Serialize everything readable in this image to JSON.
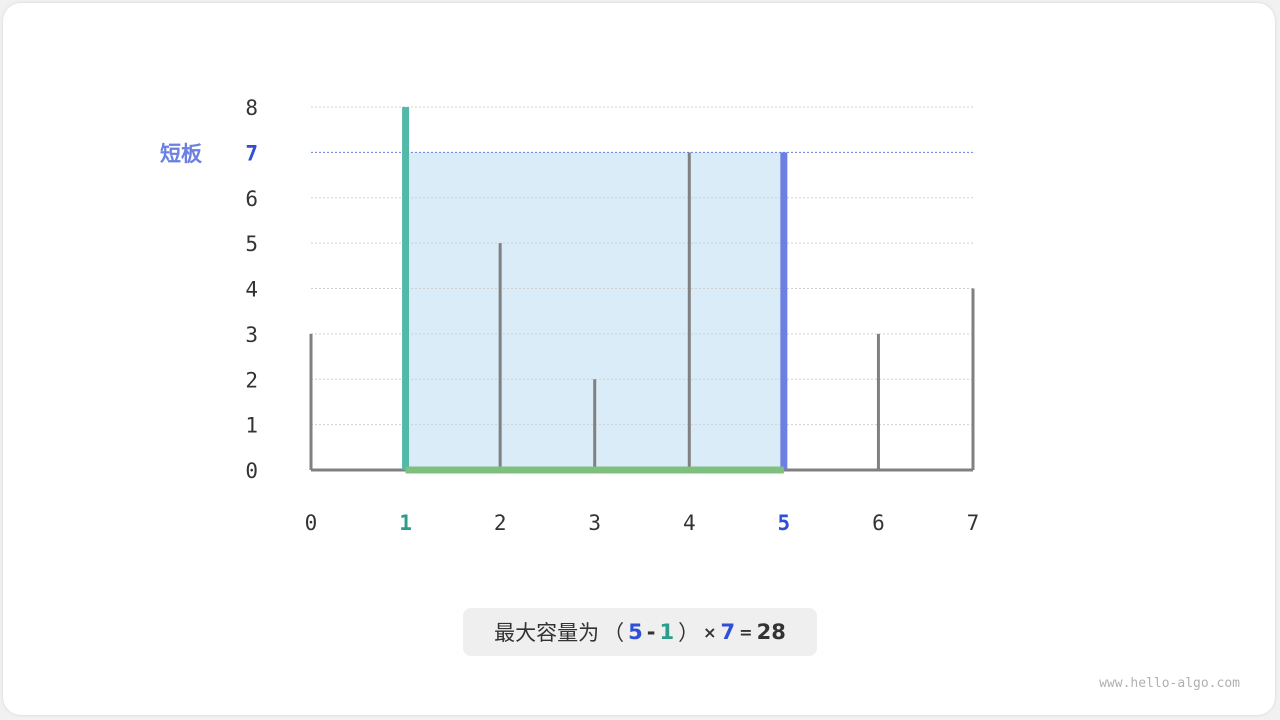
{
  "chart_data": {
    "type": "bar",
    "categories": [
      "0",
      "1",
      "2",
      "3",
      "4",
      "5",
      "6",
      "7"
    ],
    "values": [
      3,
      8,
      5,
      2,
      7,
      7,
      3,
      4
    ],
    "ylim": [
      0,
      8
    ],
    "yticks": [
      "0",
      "1",
      "2",
      "3",
      "4",
      "5",
      "6",
      "7",
      "8"
    ],
    "grid": true,
    "left_index": 1,
    "right_index": 5,
    "water_level": 7,
    "short_board_label": "短板",
    "colors": {
      "bar": "#808080",
      "left": "#52b8a8",
      "right": "#6b80e0",
      "base": "#7fbf7f",
      "fill": "#dbecf9",
      "highlight_text": "#2f4fd6",
      "left_text": "#2e9c8a",
      "short_label": "#6b80e0"
    }
  },
  "result": {
    "prefix": "最大容量为",
    "open": "（",
    "right": "5",
    "minus": "-",
    "left": "1",
    "close": "）",
    "times": "×",
    "height": "7",
    "equals": "=",
    "value": "28"
  },
  "watermark": "www.hello-algo.com"
}
